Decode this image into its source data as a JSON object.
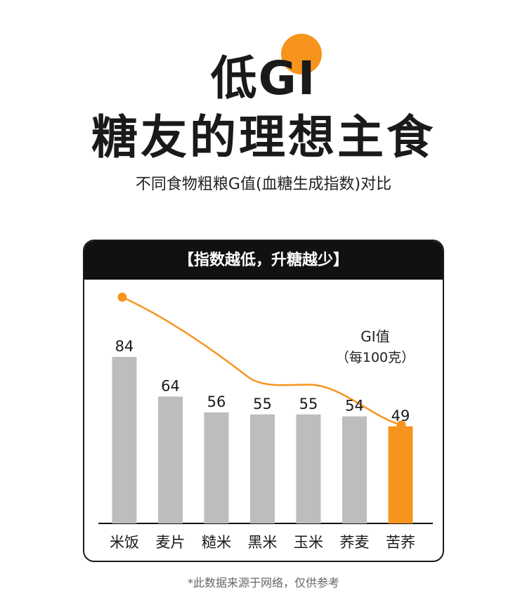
{
  "title_line1": "低GI",
  "title_line2": "糖友的理想主食",
  "subtitle": "不同食物粗粮G值(血糖生成指数)对比",
  "card_header": "【指数越低，升糖越少】",
  "footnote": "*此数据来源于网络，仅供参考",
  "colors": {
    "accent": "#f7941d",
    "bar": "#bdbdbd",
    "dark": "#111111"
  },
  "chart_data": {
    "type": "bar",
    "categories": [
      "米饭",
      "麦片",
      "糙米",
      "黑米",
      "玉米",
      "荞麦",
      "苦荞"
    ],
    "values": [
      84,
      64,
      56,
      55,
      55,
      54,
      49
    ],
    "highlight_index": 6,
    "value_label_line1": "GI值",
    "value_label_line2": "（每100克）",
    "trend_line": "decreasing curve from 米饭 to 苦荞",
    "ylim": [
      0,
      90
    ]
  }
}
